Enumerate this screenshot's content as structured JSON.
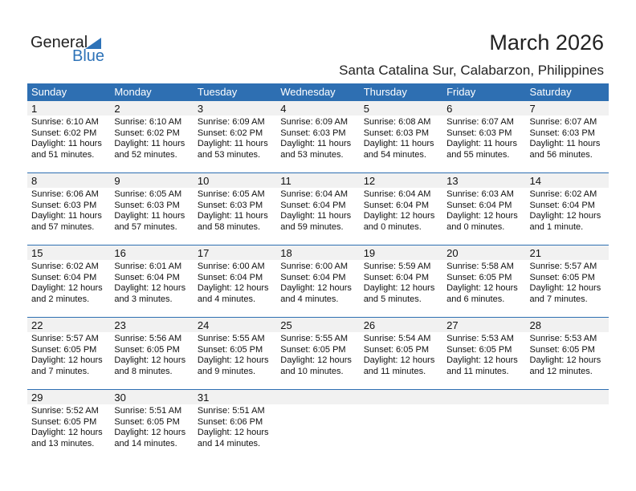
{
  "logo": {
    "general": "General",
    "blue": "Blue"
  },
  "title": "March 2026",
  "location": "Santa Catalina Sur, Calabarzon, Philippines",
  "colors": {
    "header": "#2e6fb2",
    "date_row": "#f1f1f1"
  },
  "weekdays": [
    "Sunday",
    "Monday",
    "Tuesday",
    "Wednesday",
    "Thursday",
    "Friday",
    "Saturday"
  ],
  "weeks": [
    [
      {
        "day": "1",
        "sunrise": "Sunrise: 6:10 AM",
        "sunset": "Sunset: 6:02 PM",
        "daylight": "Daylight: 11 hours",
        "minutes": "and 51 minutes."
      },
      {
        "day": "2",
        "sunrise": "Sunrise: 6:10 AM",
        "sunset": "Sunset: 6:02 PM",
        "daylight": "Daylight: 11 hours",
        "minutes": "and 52 minutes."
      },
      {
        "day": "3",
        "sunrise": "Sunrise: 6:09 AM",
        "sunset": "Sunset: 6:02 PM",
        "daylight": "Daylight: 11 hours",
        "minutes": "and 53 minutes."
      },
      {
        "day": "4",
        "sunrise": "Sunrise: 6:09 AM",
        "sunset": "Sunset: 6:03 PM",
        "daylight": "Daylight: 11 hours",
        "minutes": "and 53 minutes."
      },
      {
        "day": "5",
        "sunrise": "Sunrise: 6:08 AM",
        "sunset": "Sunset: 6:03 PM",
        "daylight": "Daylight: 11 hours",
        "minutes": "and 54 minutes."
      },
      {
        "day": "6",
        "sunrise": "Sunrise: 6:07 AM",
        "sunset": "Sunset: 6:03 PM",
        "daylight": "Daylight: 11 hours",
        "minutes": "and 55 minutes."
      },
      {
        "day": "7",
        "sunrise": "Sunrise: 6:07 AM",
        "sunset": "Sunset: 6:03 PM",
        "daylight": "Daylight: 11 hours",
        "minutes": "and 56 minutes."
      }
    ],
    [
      {
        "day": "8",
        "sunrise": "Sunrise: 6:06 AM",
        "sunset": "Sunset: 6:03 PM",
        "daylight": "Daylight: 11 hours",
        "minutes": "and 57 minutes."
      },
      {
        "day": "9",
        "sunrise": "Sunrise: 6:05 AM",
        "sunset": "Sunset: 6:03 PM",
        "daylight": "Daylight: 11 hours",
        "minutes": "and 57 minutes."
      },
      {
        "day": "10",
        "sunrise": "Sunrise: 6:05 AM",
        "sunset": "Sunset: 6:03 PM",
        "daylight": "Daylight: 11 hours",
        "minutes": "and 58 minutes."
      },
      {
        "day": "11",
        "sunrise": "Sunrise: 6:04 AM",
        "sunset": "Sunset: 6:04 PM",
        "daylight": "Daylight: 11 hours",
        "minutes": "and 59 minutes."
      },
      {
        "day": "12",
        "sunrise": "Sunrise: 6:04 AM",
        "sunset": "Sunset: 6:04 PM",
        "daylight": "Daylight: 12 hours",
        "minutes": "and 0 minutes."
      },
      {
        "day": "13",
        "sunrise": "Sunrise: 6:03 AM",
        "sunset": "Sunset: 6:04 PM",
        "daylight": "Daylight: 12 hours",
        "minutes": "and 0 minutes."
      },
      {
        "day": "14",
        "sunrise": "Sunrise: 6:02 AM",
        "sunset": "Sunset: 6:04 PM",
        "daylight": "Daylight: 12 hours",
        "minutes": "and 1 minute."
      }
    ],
    [
      {
        "day": "15",
        "sunrise": "Sunrise: 6:02 AM",
        "sunset": "Sunset: 6:04 PM",
        "daylight": "Daylight: 12 hours",
        "minutes": "and 2 minutes."
      },
      {
        "day": "16",
        "sunrise": "Sunrise: 6:01 AM",
        "sunset": "Sunset: 6:04 PM",
        "daylight": "Daylight: 12 hours",
        "minutes": "and 3 minutes."
      },
      {
        "day": "17",
        "sunrise": "Sunrise: 6:00 AM",
        "sunset": "Sunset: 6:04 PM",
        "daylight": "Daylight: 12 hours",
        "minutes": "and 4 minutes."
      },
      {
        "day": "18",
        "sunrise": "Sunrise: 6:00 AM",
        "sunset": "Sunset: 6:04 PM",
        "daylight": "Daylight: 12 hours",
        "minutes": "and 4 minutes."
      },
      {
        "day": "19",
        "sunrise": "Sunrise: 5:59 AM",
        "sunset": "Sunset: 6:04 PM",
        "daylight": "Daylight: 12 hours",
        "minutes": "and 5 minutes."
      },
      {
        "day": "20",
        "sunrise": "Sunrise: 5:58 AM",
        "sunset": "Sunset: 6:05 PM",
        "daylight": "Daylight: 12 hours",
        "minutes": "and 6 minutes."
      },
      {
        "day": "21",
        "sunrise": "Sunrise: 5:57 AM",
        "sunset": "Sunset: 6:05 PM",
        "daylight": "Daylight: 12 hours",
        "minutes": "and 7 minutes."
      }
    ],
    [
      {
        "day": "22",
        "sunrise": "Sunrise: 5:57 AM",
        "sunset": "Sunset: 6:05 PM",
        "daylight": "Daylight: 12 hours",
        "minutes": "and 7 minutes."
      },
      {
        "day": "23",
        "sunrise": "Sunrise: 5:56 AM",
        "sunset": "Sunset: 6:05 PM",
        "daylight": "Daylight: 12 hours",
        "minutes": "and 8 minutes."
      },
      {
        "day": "24",
        "sunrise": "Sunrise: 5:55 AM",
        "sunset": "Sunset: 6:05 PM",
        "daylight": "Daylight: 12 hours",
        "minutes": "and 9 minutes."
      },
      {
        "day": "25",
        "sunrise": "Sunrise: 5:55 AM",
        "sunset": "Sunset: 6:05 PM",
        "daylight": "Daylight: 12 hours",
        "minutes": "and 10 minutes."
      },
      {
        "day": "26",
        "sunrise": "Sunrise: 5:54 AM",
        "sunset": "Sunset: 6:05 PM",
        "daylight": "Daylight: 12 hours",
        "minutes": "and 11 minutes."
      },
      {
        "day": "27",
        "sunrise": "Sunrise: 5:53 AM",
        "sunset": "Sunset: 6:05 PM",
        "daylight": "Daylight: 12 hours",
        "minutes": "and 11 minutes."
      },
      {
        "day": "28",
        "sunrise": "Sunrise: 5:53 AM",
        "sunset": "Sunset: 6:05 PM",
        "daylight": "Daylight: 12 hours",
        "minutes": "and 12 minutes."
      }
    ],
    [
      {
        "day": "29",
        "sunrise": "Sunrise: 5:52 AM",
        "sunset": "Sunset: 6:05 PM",
        "daylight": "Daylight: 12 hours",
        "minutes": "and 13 minutes."
      },
      {
        "day": "30",
        "sunrise": "Sunrise: 5:51 AM",
        "sunset": "Sunset: 6:05 PM",
        "daylight": "Daylight: 12 hours",
        "minutes": "and 14 minutes."
      },
      {
        "day": "31",
        "sunrise": "Sunrise: 5:51 AM",
        "sunset": "Sunset: 6:06 PM",
        "daylight": "Daylight: 12 hours",
        "minutes": "and 14 minutes."
      },
      null,
      null,
      null,
      null
    ]
  ]
}
